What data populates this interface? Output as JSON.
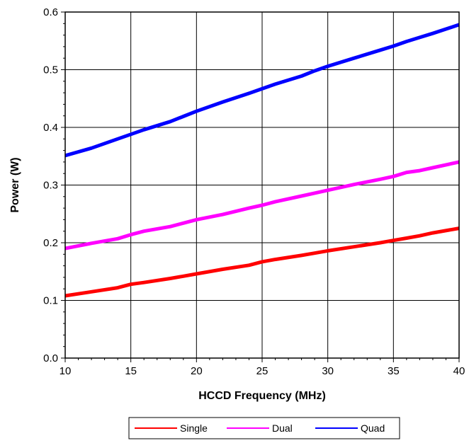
{
  "chart_data": {
    "type": "line",
    "title": "",
    "xlabel": "HCCD Frequency (MHz)",
    "ylabel": "Power (W)",
    "xlim": [
      10,
      40
    ],
    "ylim": [
      0.0,
      0.6
    ],
    "x_ticks": [
      10,
      15,
      20,
      25,
      30,
      35,
      40
    ],
    "x_tick_labels": [
      "10",
      "15",
      "20",
      "25",
      "30",
      "35",
      "40"
    ],
    "y_ticks": [
      0.0,
      0.1,
      0.2,
      0.3,
      0.4,
      0.5,
      0.6
    ],
    "y_tick_labels": [
      "0.0",
      "0.1",
      "0.2",
      "0.3",
      "0.4",
      "0.5",
      "0.6"
    ],
    "grid": true,
    "legend_position": "bottom",
    "x": [
      10,
      12,
      14,
      15,
      16,
      18,
      19,
      20,
      22,
      24,
      25,
      26,
      28,
      29,
      30,
      32,
      34,
      35,
      36,
      37,
      38,
      40
    ],
    "series": [
      {
        "name": "Single",
        "color": "#ff0000",
        "values": [
          0.108,
          0.115,
          0.122,
          0.128,
          0.131,
          0.138,
          0.142,
          0.146,
          0.154,
          0.161,
          0.167,
          0.171,
          0.178,
          0.182,
          0.186,
          0.193,
          0.2,
          0.204,
          0.208,
          0.212,
          0.217,
          0.225
        ]
      },
      {
        "name": "Dual",
        "color": "#ff00ff",
        "values": [
          0.19,
          0.199,
          0.207,
          0.214,
          0.22,
          0.228,
          0.234,
          0.24,
          0.249,
          0.26,
          0.265,
          0.271,
          0.281,
          0.286,
          0.291,
          0.301,
          0.31,
          0.315,
          0.322,
          0.325,
          0.33,
          0.34
        ]
      },
      {
        "name": "Quad",
        "color": "#0000ff",
        "values": [
          0.351,
          0.364,
          0.38,
          0.388,
          0.396,
          0.41,
          0.419,
          0.428,
          0.444,
          0.459,
          0.467,
          0.475,
          0.489,
          0.498,
          0.506,
          0.52,
          0.534,
          0.541,
          0.549,
          0.556,
          0.563,
          0.578
        ]
      }
    ]
  }
}
